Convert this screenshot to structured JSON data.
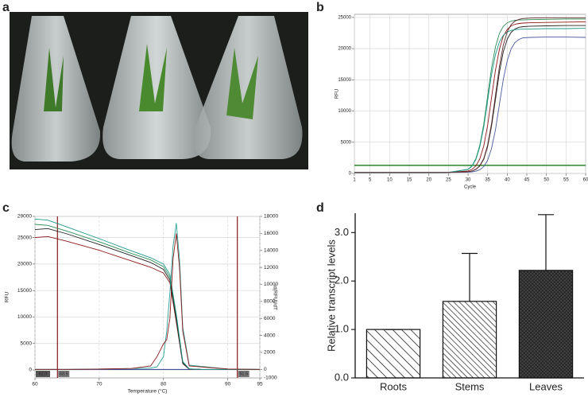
{
  "panel_labels": [
    "a",
    "b",
    "c",
    "d"
  ],
  "chart_data": [
    {
      "type": "line",
      "x_label": "Cycle",
      "y_label": "RFU",
      "xlim": [
        1,
        60
      ],
      "xticks": [
        1,
        5,
        10,
        15,
        20,
        25,
        30,
        35,
        40,
        45,
        50,
        55,
        60
      ],
      "ylim": [
        0,
        25500
      ],
      "yticks": [
        0,
        5000,
        10000,
        15000,
        20000,
        25000
      ],
      "grid": true,
      "threshold": {
        "value": 1300,
        "color": "#1a7a1a"
      },
      "x": [
        1,
        10,
        20,
        25,
        30,
        31,
        32,
        33,
        34,
        35,
        36,
        37,
        38,
        39,
        40,
        41,
        42,
        43,
        44,
        46,
        50,
        55,
        60
      ],
      "series": [
        {
          "color": "#2e8b57",
          "values": [
            150,
            150,
            150,
            160,
            660,
            1230,
            2360,
            4490,
            7890,
            12400,
            16910,
            20310,
            22450,
            23570,
            24140,
            24410,
            24530,
            24590,
            24600,
            24650,
            24700,
            24750,
            24750
          ]
        },
        {
          "color": "#8b1a1a",
          "values": [
            150,
            150,
            150,
            160,
            390,
            650,
            1210,
            2310,
            4400,
            7730,
            12150,
            16570,
            19900,
            21990,
            23090,
            23650,
            23910,
            24030,
            24100,
            24150,
            24200,
            24250,
            24300
          ]
        },
        {
          "color": "#222222",
          "values": [
            150,
            150,
            150,
            160,
            260,
            380,
            640,
            1180,
            2270,
            4310,
            7580,
            11900,
            16220,
            19490,
            21540,
            22620,
            23160,
            23420,
            23530,
            23600,
            23650,
            23700,
            23700
          ]
        },
        {
          "color": "#4a5a9a",
          "values": [
            150,
            150,
            150,
            160,
            200,
            250,
            360,
            600,
            1110,
            2110,
            4010,
            7040,
            11050,
            15060,
            18090,
            19990,
            20990,
            21490,
            21730,
            21800,
            21850,
            21850,
            21800
          ]
        },
        {
          "color": "#1f9a8a",
          "values": [
            150,
            150,
            150,
            160,
            630,
            1160,
            2220,
            4220,
            7420,
            11650,
            15880,
            19080,
            21080,
            22140,
            22670,
            22920,
            23040,
            23100,
            23120,
            23150,
            23200,
            23200,
            23250
          ]
        },
        {
          "color": "#5a2a2a",
          "values": [
            150,
            150,
            150,
            160,
            270,
            390,
            670,
            1240,
            2380,
            4540,
            7990,
            12550,
            17110,
            20560,
            22720,
            23860,
            24430,
            24700,
            24830,
            24900,
            24950,
            24950,
            24950
          ]
        }
      ]
    },
    {
      "type": "line",
      "x_label": "Temperature (°C)",
      "y_label": "RFU",
      "y2_label": "-d(RFU)/dT",
      "xlim": [
        60,
        95
      ],
      "xticks": [
        60,
        70,
        80,
        90,
        95
      ],
      "ylim": [
        -1500,
        29000
      ],
      "yticks": [
        0,
        5000,
        10000,
        15000,
        20000,
        25000,
        29000
      ],
      "y2lim": [
        -1000,
        18000
      ],
      "y2ticks": [
        -1000,
        0,
        2000,
        4000,
        6000,
        8000,
        10000,
        12000,
        14000,
        16000,
        18000
      ],
      "grid": true,
      "annotations": [
        {
          "x": 63.5,
          "label": "63.5",
          "color": "#8b1a1a"
        },
        {
          "x": 91.5,
          "label": "91.5",
          "color": "#8b1a1a"
        }
      ],
      "cursor_label": "62.0",
      "series": [
        {
          "color": "#2e8b57",
          "x": [
            60,
            62,
            65,
            70,
            75,
            78,
            80,
            81,
            82,
            83,
            84,
            86,
            90,
            95
          ],
          "values": [
            27500,
            27300,
            26200,
            24200,
            22000,
            20800,
            19500,
            17500,
            10000,
            1500,
            200,
            100,
            100,
            100
          ]
        },
        {
          "color": "#8b1a1a",
          "x": [
            60,
            62,
            65,
            70,
            75,
            78,
            80,
            81,
            82,
            83,
            84,
            86,
            90,
            95
          ],
          "values": [
            25000,
            25200,
            24300,
            22600,
            20600,
            19400,
            18300,
            16500,
            9000,
            1200,
            150,
            100,
            100,
            100
          ]
        },
        {
          "color": "#222222",
          "x": [
            60,
            62,
            65,
            70,
            75,
            78,
            80,
            81,
            82,
            83,
            84,
            86,
            90,
            95
          ],
          "values": [
            26500,
            26700,
            25700,
            23700,
            21600,
            20300,
            19000,
            17000,
            9500,
            1300,
            180,
            100,
            100,
            100
          ]
        },
        {
          "color": "#1f9a8a",
          "x": [
            60,
            62,
            65,
            70,
            75,
            78,
            80,
            81,
            82,
            83,
            84,
            86,
            90,
            95
          ],
          "values": [
            28500,
            28300,
            27000,
            24800,
            22500,
            21200,
            20000,
            18000,
            10500,
            1600,
            220,
            100,
            100,
            100
          ]
        },
        {
          "color": "#2aa198",
          "axis": "y2",
          "x": [
            60,
            65,
            70,
            75,
            78,
            79,
            80,
            80.5,
            81,
            81.5,
            82,
            82.5,
            83,
            84,
            90,
            95
          ],
          "values": [
            0,
            0,
            50,
            100,
            150,
            300,
            1500,
            4500,
            9000,
            14500,
            17200,
            13000,
            5000,
            500,
            50,
            0
          ]
        },
        {
          "color": "#8b1a1a",
          "axis": "y2",
          "x": [
            60,
            65,
            70,
            75,
            78,
            79,
            80,
            80.5,
            81,
            81.5,
            82,
            82.5,
            83,
            84,
            90,
            95
          ],
          "values": [
            0,
            0,
            40,
            100,
            400,
            1500,
            3000,
            3500,
            6000,
            13000,
            16000,
            12000,
            4500,
            400,
            50,
            0
          ]
        }
      ]
    },
    {
      "type": "bar",
      "y_label": "Relative transcript levels",
      "categories": [
        "Roots",
        "Stems",
        "Leaves"
      ],
      "values": [
        1.0,
        1.58,
        2.22
      ],
      "errors": [
        0,
        0.99,
        1.15
      ],
      "ylim": [
        0,
        3.4
      ],
      "yticks": [
        {
          "value": 0,
          "label": "0.0"
        },
        {
          "value": 1,
          "label": "1.0"
        },
        {
          "value": 2,
          "label": "2.0"
        },
        {
          "value": 3,
          "label": "3.0"
        }
      ]
    }
  ]
}
